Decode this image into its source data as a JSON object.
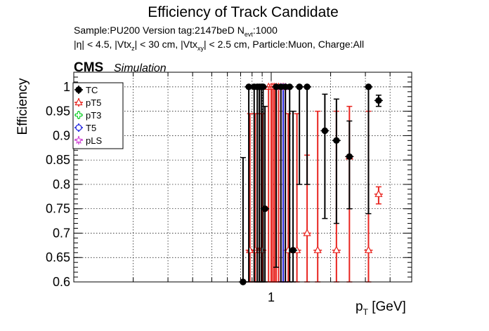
{
  "title": "Efficiency of Track Candidate",
  "subtitle_line1": "Sample:PU200   Version tag:2147beD  N",
  "subtitle_nevt_sub": "evt",
  "subtitle_nevt_val": ":1000",
  "subtitle_line2": "|η| < 4.5, |Vtx",
  "cms_label": "CMS",
  "simulation_label": "Simulation",
  "chart_data": {
    "type": "scatter",
    "title": "Efficiency of Track Candidate",
    "ylabel": "Efficiency",
    "xlabel": "p_T [GeV]",
    "xscale": "log",
    "xlim": [
      0.1,
      4.3
    ],
    "ylim": [
      0.6,
      1.03
    ],
    "grid": true,
    "legend_position": "top-left",
    "x_ticks": [
      {
        "value": 1,
        "label": "1"
      }
    ],
    "y_ticks": [
      {
        "value": 0.6,
        "label": "0.6"
      },
      {
        "value": 0.65,
        "label": "0.65"
      },
      {
        "value": 0.7,
        "label": "0.7"
      },
      {
        "value": 0.75,
        "label": "0.75"
      },
      {
        "value": 0.8,
        "label": "0.8"
      },
      {
        "value": 0.85,
        "label": "0.85"
      },
      {
        "value": 0.9,
        "label": "0.9"
      },
      {
        "value": 0.95,
        "label": "0.95"
      },
      {
        "value": 1.0,
        "label": "1"
      }
    ],
    "series": [
      {
        "name": "TC",
        "color": "#000000",
        "marker": "circle",
        "points": [
          {
            "x": 0.72,
            "y": 0.6,
            "lo": 0.6,
            "hi": 0.855
          },
          {
            "x": 0.77,
            "y": 1.0,
            "lo": 0.6,
            "hi": 1.0
          },
          {
            "x": 0.82,
            "y": 1.0,
            "lo": 0.6,
            "hi": 1.0
          },
          {
            "x": 0.85,
            "y": 1.0,
            "lo": 0.6,
            "hi": 1.0
          },
          {
            "x": 0.87,
            "y": 1.0,
            "lo": 0.6,
            "hi": 1.0
          },
          {
            "x": 0.89,
            "y": 1.0,
            "lo": 0.6,
            "hi": 1.0
          },
          {
            "x": 0.91,
            "y": 1.0,
            "lo": 0.6,
            "hi": 1.0
          },
          {
            "x": 0.93,
            "y": 0.75,
            "lo": 0.6,
            "hi": 0.96
          },
          {
            "x": 1.06,
            "y": 1.0,
            "lo": 0.63,
            "hi": 1.0
          },
          {
            "x": 1.12,
            "y": 1.0,
            "lo": 0.6,
            "hi": 1.0
          },
          {
            "x": 1.18,
            "y": 1.0,
            "lo": 0.6,
            "hi": 1.0
          },
          {
            "x": 1.24,
            "y": 1.0,
            "lo": 0.6,
            "hi": 1.0
          },
          {
            "x": 1.29,
            "y": 0.665,
            "lo": 0.6,
            "hi": 0.95
          },
          {
            "x": 1.39,
            "y": 1.0,
            "lo": 0.8,
            "hi": 1.0
          },
          {
            "x": 1.52,
            "y": 1.0,
            "lo": 0.8,
            "hi": 1.0
          },
          {
            "x": 1.87,
            "y": 0.91,
            "lo": 0.73,
            "hi": 0.985
          },
          {
            "x": 2.14,
            "y": 0.89,
            "lo": 0.72,
            "hi": 0.975
          },
          {
            "x": 2.49,
            "y": 0.857,
            "lo": 0.75,
            "hi": 0.93
          },
          {
            "x": 3.11,
            "y": 1.0,
            "lo": 0.74,
            "hi": 1.0
          },
          {
            "x": 3.5,
            "y": 0.972,
            "lo": 0.96,
            "hi": 0.983
          }
        ]
      },
      {
        "name": "pT5",
        "color": "#e8241f",
        "marker": "open-triangle",
        "points": [
          {
            "x": 0.78,
            "y": 0.665,
            "lo": 0.6,
            "hi": 0.945
          },
          {
            "x": 0.83,
            "y": 0.665,
            "lo": 0.6,
            "hi": 0.945
          },
          {
            "x": 0.87,
            "y": 0.665,
            "lo": 0.6,
            "hi": 0.945
          },
          {
            "x": 0.9,
            "y": 0.665,
            "lo": 0.6,
            "hi": 0.945
          },
          {
            "x": 0.97,
            "y": 1.0,
            "lo": 0.6,
            "hi": 1.0
          },
          {
            "x": 1.0,
            "y": 1.0,
            "lo": 0.6,
            "hi": 1.0
          },
          {
            "x": 1.02,
            "y": 1.0,
            "lo": 0.6,
            "hi": 1.0
          },
          {
            "x": 1.04,
            "y": 1.0,
            "lo": 0.6,
            "hi": 1.0
          },
          {
            "x": 1.06,
            "y": 1.0,
            "lo": 0.6,
            "hi": 1.0
          },
          {
            "x": 1.09,
            "y": 1.0,
            "lo": 0.6,
            "hi": 1.0
          },
          {
            "x": 1.15,
            "y": 1.0,
            "lo": 0.6,
            "hi": 1.0
          },
          {
            "x": 1.22,
            "y": 0.665,
            "lo": 0.6,
            "hi": 0.945
          },
          {
            "x": 1.35,
            "y": 0.665,
            "lo": 0.6,
            "hi": 0.945
          },
          {
            "x": 1.52,
            "y": 0.7,
            "lo": 0.6,
            "hi": 0.86
          },
          {
            "x": 1.72,
            "y": 0.665,
            "lo": 0.6,
            "hi": 0.95
          },
          {
            "x": 2.14,
            "y": 0.665,
            "lo": 0.6,
            "hi": 0.95
          },
          {
            "x": 2.49,
            "y": 0.857,
            "lo": 0.6,
            "hi": 0.96
          },
          {
            "x": 3.11,
            "y": 0.665,
            "lo": 0.6,
            "hi": 0.95
          },
          {
            "x": 3.5,
            "y": 0.78,
            "lo": 0.76,
            "hi": 0.795
          }
        ]
      },
      {
        "name": "pT3",
        "color": "#25d43c",
        "marker": "open-cross",
        "points": []
      },
      {
        "name": "T5",
        "color": "#1f24e0",
        "marker": "open-circle",
        "points": [
          {
            "x": 1.15,
            "y": 1.0,
            "lo": 0.6,
            "hi": 1.0
          }
        ]
      },
      {
        "name": "pLS",
        "color": "#d24bd7",
        "marker": "open-star",
        "points": [
          {
            "x": 1.12,
            "y": 1.0,
            "lo": 0.6,
            "hi": 1.0
          },
          {
            "x": 1.18,
            "y": 1.0,
            "lo": 0.6,
            "hi": 1.0
          }
        ]
      }
    ]
  }
}
